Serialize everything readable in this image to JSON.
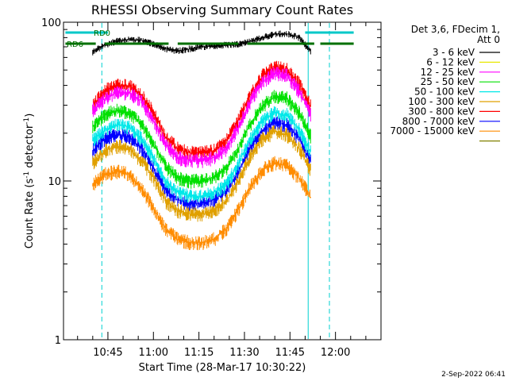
{
  "chart_data": {
    "type": "line",
    "title": "RHESSI Observing Summary Count Rates",
    "xlabel": "Start Time (28-Mar-17 10:30:22)",
    "ylabel": "Count Rate (s",
    "ylabel_sup": "-1",
    "ylabel_tail": " detector",
    "ylabel_tail_sup": "-1",
    "ylabel_close": ")",
    "yscale": "log",
    "ylim": [
      1,
      100
    ],
    "xlim": [
      "10:30:22",
      "12:15:00"
    ],
    "x_ticks": [
      "10:45",
      "11:00",
      "11:15",
      "11:30",
      "11:45",
      "12:00"
    ],
    "y_ticks": [
      "1",
      "10",
      "100"
    ],
    "legend_header": [
      "Det 3,6, FDecim 1,",
      "Att 0"
    ],
    "legend_position": "right",
    "timestamp": "2-Sep-2022 06:41",
    "attenuator_flags": [
      {
        "label": "RD0",
        "color": "#00c8c8"
      },
      {
        "label": "RD6",
        "color": "#007000"
      }
    ],
    "vertical_markers": [
      {
        "time": "10:43",
        "style": "dashed"
      },
      {
        "time": "11:51",
        "style": "solid"
      },
      {
        "time": "11:58",
        "style": "dashed"
      }
    ],
    "x_times": [
      "10:40",
      "10:44",
      "10:48",
      "10:52",
      "10:56",
      "11:00",
      "11:04",
      "11:08",
      "11:12",
      "11:16",
      "11:20",
      "11:24",
      "11:28",
      "11:32",
      "11:36",
      "11:40",
      "11:44",
      "11:48",
      "11:52"
    ],
    "series": [
      {
        "name": "3 - 6 keV",
        "color": "#000000",
        "values": [
          65,
          72,
          76,
          78,
          77,
          73,
          68,
          66,
          68,
          70,
          71,
          72,
          73,
          76,
          80,
          84,
          85,
          80,
          65
        ]
      },
      {
        "name": "6 - 12 keV",
        "color": "#e8e800",
        "values": [
          null,
          null,
          null,
          null,
          null,
          null,
          null,
          null,
          null,
          null,
          null,
          null,
          null,
          null,
          null,
          null,
          null,
          null,
          null
        ]
      },
      {
        "name": "12 - 25 keV",
        "color": "#ff00ff",
        "values": [
          28,
          33,
          36,
          36,
          32,
          24,
          17,
          14,
          13.5,
          13.5,
          14,
          16,
          22,
          32,
          42,
          48,
          46,
          37,
          26
        ]
      },
      {
        "name": "25 - 50 keV",
        "color": "#00e000",
        "values": [
          22,
          26,
          28,
          27,
          23,
          17,
          12.5,
          10.5,
          10,
          10,
          10.5,
          12,
          16,
          23,
          30,
          34,
          33,
          27,
          19
        ]
      },
      {
        "name": "50 - 100 keV",
        "color": "#00e8e8",
        "values": [
          18,
          21,
          22.5,
          22,
          18.5,
          14,
          10,
          8.5,
          8,
          8,
          8.5,
          9.5,
          13,
          18.5,
          24,
          27,
          26,
          21,
          15
        ]
      },
      {
        "name": "100 - 300 keV",
        "color": "#e0a000",
        "values": [
          13,
          15.5,
          16.5,
          16,
          13.5,
          10.5,
          7.5,
          6.5,
          6.2,
          6.2,
          6.5,
          7.5,
          10,
          14.5,
          18.5,
          20.5,
          19.5,
          16,
          11.5
        ]
      },
      {
        "name": "300 - 800 keV",
        "color": "#ff0000",
        "values": [
          30,
          37,
          40,
          40,
          35,
          27,
          19,
          16,
          15,
          15,
          15.5,
          18,
          24,
          35,
          46,
          52,
          50,
          41,
          29
        ]
      },
      {
        "name": "800 - 7000 keV",
        "color": "#0000ff",
        "values": [
          15.5,
          18.5,
          19.5,
          19,
          16,
          12,
          8.8,
          7.6,
          7.2,
          7.2,
          7.6,
          8.6,
          11.5,
          16.5,
          21,
          23.5,
          22.5,
          18.5,
          13
        ]
      },
      {
        "name": "7000 - 15000 keV",
        "color": "#ff8c00",
        "values": [
          9.5,
          11,
          11.5,
          11,
          9,
          6.8,
          5,
          4.3,
          4.1,
          4.1,
          4.3,
          5,
          6.6,
          9.2,
          11.8,
          13,
          12.5,
          10.5,
          7.8
        ]
      },
      {
        "name": "",
        "color": "#808000",
        "values": [
          null,
          null,
          null,
          null,
          null,
          null,
          null,
          null,
          null,
          null,
          null,
          null,
          null,
          null,
          null,
          null,
          null,
          null,
          null
        ]
      }
    ]
  }
}
